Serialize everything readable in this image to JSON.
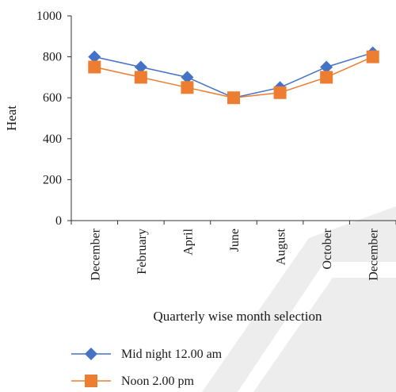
{
  "chart_data": {
    "type": "line",
    "xlabel": "Quarterly wise month selection",
    "ylabel": "Heat",
    "categories": [
      "December",
      "February",
      "April",
      "June",
      "August",
      "October",
      "December"
    ],
    "ylim": [
      0,
      1000
    ],
    "yticks": [
      0,
      200,
      400,
      600,
      800,
      1000
    ],
    "grid": false,
    "legend_position": "bottom",
    "series": [
      {
        "name": "Mid night 12.00 am",
        "values": [
          800,
          750,
          700,
          600,
          650,
          750,
          820
        ],
        "color": "#4472C4",
        "marker": "diamond"
      },
      {
        "name": "Noon 2.00 pm",
        "values": [
          750,
          700,
          650,
          600,
          625,
          700,
          800
        ],
        "color": "#ED7D31",
        "marker": "square"
      }
    ]
  },
  "watermark": {
    "color": "#dcdcdc"
  }
}
